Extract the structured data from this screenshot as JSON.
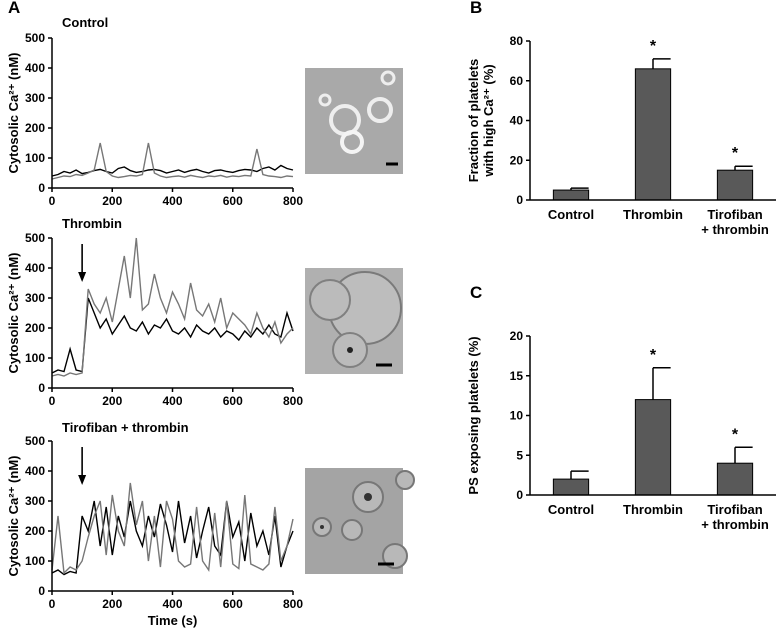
{
  "chart_data": [
    {
      "type": "line",
      "panel": "A",
      "title": "Control",
      "ylabel": "Cytosolic Ca²⁺ (nM)",
      "x": [
        0,
        20,
        40,
        60,
        80,
        100,
        120,
        140,
        160,
        180,
        200,
        220,
        240,
        260,
        280,
        300,
        320,
        340,
        360,
        380,
        400,
        420,
        440,
        460,
        480,
        500,
        520,
        540,
        560,
        580,
        600,
        620,
        640,
        660,
        680,
        700,
        720,
        740,
        760,
        780,
        800
      ],
      "series": [
        {
          "color": "#000000",
          "values": [
            40,
            45,
            55,
            50,
            60,
            48,
            52,
            58,
            62,
            55,
            50,
            65,
            70,
            58,
            52,
            55,
            60,
            62,
            58,
            50,
            55,
            60,
            52,
            58,
            62,
            55,
            50,
            58,
            60,
            55,
            52,
            58,
            62,
            60,
            55,
            65,
            70,
            60,
            75,
            65,
            60
          ]
        },
        {
          "color": "#777777",
          "values": [
            30,
            35,
            40,
            38,
            45,
            42,
            50,
            60,
            150,
            55,
            40,
            35,
            38,
            42,
            40,
            45,
            150,
            50,
            40,
            35,
            38,
            40,
            36,
            42,
            38,
            35,
            40,
            38,
            42,
            36,
            40,
            38,
            42,
            40,
            130,
            45,
            40,
            38,
            35,
            40,
            38
          ]
        }
      ],
      "xlim": [
        0,
        800
      ],
      "xticks": [
        0,
        200,
        400,
        600,
        800
      ],
      "ylim": [
        0,
        500
      ],
      "yticks": [
        0,
        100,
        200,
        300,
        400,
        500
      ]
    },
    {
      "type": "line",
      "title": "Thrombin",
      "ylabel": "Cytosolic Ca²⁺ (nM)",
      "arrow_at": 100,
      "x": [
        0,
        20,
        40,
        60,
        80,
        100,
        120,
        140,
        160,
        180,
        200,
        220,
        240,
        260,
        280,
        300,
        320,
        340,
        360,
        380,
        400,
        420,
        440,
        460,
        480,
        500,
        520,
        540,
        560,
        580,
        600,
        620,
        640,
        660,
        680,
        700,
        720,
        740,
        760,
        780,
        800
      ],
      "series": [
        {
          "color": "#000000",
          "values": [
            50,
            60,
            55,
            130,
            60,
            55,
            300,
            250,
            200,
            230,
            180,
            210,
            240,
            200,
            190,
            220,
            180,
            210,
            200,
            230,
            190,
            180,
            200,
            170,
            210,
            190,
            180,
            200,
            170,
            190,
            180,
            160,
            190,
            170,
            200,
            180,
            210,
            180,
            170,
            250,
            190
          ]
        },
        {
          "color": "#777777",
          "values": [
            40,
            45,
            40,
            50,
            45,
            50,
            330,
            280,
            250,
            300,
            220,
            330,
            440,
            300,
            500,
            260,
            280,
            380,
            300,
            250,
            320,
            280,
            230,
            350,
            260,
            240,
            280,
            220,
            300,
            200,
            250,
            230,
            210,
            180,
            250,
            200,
            170,
            220,
            150,
            180,
            200
          ]
        }
      ],
      "xlim": [
        0,
        800
      ],
      "xticks": [
        0,
        200,
        400,
        600,
        800
      ],
      "ylim": [
        0,
        500
      ],
      "yticks": [
        0,
        100,
        200,
        300,
        400,
        500
      ]
    },
    {
      "type": "line",
      "title": "Tirofiban + thrombin",
      "ylabel": "Cytosolic Ca²⁺ (nM)",
      "xlabel": "Time (s)",
      "arrow_at": 100,
      "x": [
        0,
        20,
        40,
        60,
        80,
        100,
        120,
        140,
        160,
        180,
        200,
        220,
        240,
        260,
        280,
        300,
        320,
        340,
        360,
        380,
        400,
        420,
        440,
        460,
        480,
        500,
        520,
        540,
        560,
        580,
        600,
        620,
        640,
        660,
        680,
        700,
        720,
        740,
        760,
        780,
        800
      ],
      "series": [
        {
          "color": "#000000",
          "values": [
            60,
            70,
            55,
            65,
            60,
            250,
            200,
            300,
            150,
            280,
            120,
            250,
            180,
            300,
            200,
            150,
            250,
            180,
            290,
            220,
            130,
            300,
            160,
            250,
            110,
            200,
            280,
            150,
            120,
            300,
            180,
            230,
            100,
            260,
            150,
            200,
            120,
            250,
            80,
            150,
            200
          ]
        },
        {
          "color": "#777777",
          "values": [
            70,
            250,
            60,
            80,
            70,
            100,
            180,
            250,
            300,
            120,
            320,
            200,
            150,
            360,
            220,
            300,
            100,
            250,
            80,
            300,
            240,
            100,
            80,
            90,
            280,
            100,
            70,
            260,
            80,
            300,
            90,
            75,
            320,
            90,
            80,
            70,
            90,
            280,
            100,
            150,
            240
          ]
        }
      ],
      "xlim": [
        0,
        800
      ],
      "xticks": [
        0,
        200,
        400,
        600,
        800
      ],
      "ylim": [
        0,
        500
      ],
      "yticks": [
        0,
        100,
        200,
        300,
        400,
        500
      ]
    },
    {
      "type": "bar",
      "panel": "B",
      "ylabel": [
        "Fraction of platelets",
        "with high Ca²⁺ (%)"
      ],
      "categories": [
        [
          "Control"
        ],
        [
          "Thrombin"
        ],
        [
          "Tirofiban",
          "+ thrombin"
        ]
      ],
      "values": [
        5,
        66,
        15
      ],
      "errors": [
        1,
        5,
        2
      ],
      "significance": [
        null,
        "*",
        "*"
      ],
      "color": "#595959",
      "ylim": [
        0,
        80
      ],
      "yticks": [
        0,
        20,
        40,
        60,
        80
      ]
    },
    {
      "type": "bar",
      "panel": "C",
      "ylabel": [
        "PS exposing platelets (%)"
      ],
      "categories": [
        [
          "Control"
        ],
        [
          "Thrombin"
        ],
        [
          "Tirofiban",
          "+ thrombin"
        ]
      ],
      "values": [
        2,
        12,
        4
      ],
      "errors": [
        1,
        4,
        2
      ],
      "significance": [
        null,
        "*",
        "*"
      ],
      "color": "#595959",
      "ylim": [
        0,
        20
      ],
      "yticks": [
        0,
        5,
        10,
        15,
        20
      ]
    }
  ]
}
